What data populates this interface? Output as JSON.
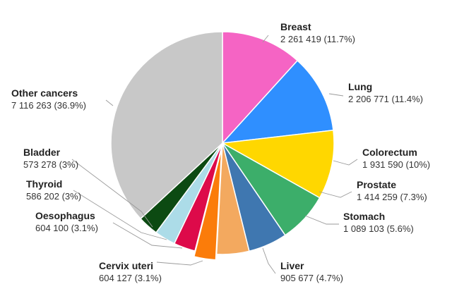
{
  "chart_data": {
    "type": "pie",
    "title": "",
    "start": "top, clockwise",
    "slices": [
      {
        "name": "Breast",
        "value": 2261419,
        "value_label": "2 261 419",
        "pct_label": "(11.7%)",
        "color": "#f564c4"
      },
      {
        "name": "Lung",
        "value": 2206771,
        "value_label": "2 206 771",
        "pct_label": "(11.4%)",
        "color": "#2f8fff"
      },
      {
        "name": "Colorectum",
        "value": 1931590,
        "value_label": "1 931 590",
        "pct_label": "(10%)",
        "color": "#ffd700"
      },
      {
        "name": "Prostate",
        "value": 1414259,
        "value_label": "1 414 259",
        "pct_label": "(7.3%)",
        "color": "#3cae6a"
      },
      {
        "name": "Stomach",
        "value": 1089103,
        "value_label": "1 089 103",
        "pct_label": "(5.6%)",
        "color": "#3f77b0"
      },
      {
        "name": "Liver",
        "value": 905677,
        "value_label": "905 677",
        "pct_label": "(4.7%)",
        "color": "#f3a95f"
      },
      {
        "name": "Cervix uteri",
        "value": 604127,
        "value_label": "604 127",
        "pct_label": "(3.1%)",
        "color": "#fb7c0a",
        "exploded": true
      },
      {
        "name": "Oesophagus",
        "value": 604100,
        "value_label": "604 100",
        "pct_label": "(3.1%)",
        "color": "#dd0a4a"
      },
      {
        "name": "Thyroid",
        "value": 586202,
        "value_label": "586 202",
        "pct_label": "(3%)",
        "color": "#acdce8"
      },
      {
        "name": "Bladder",
        "value": 573278,
        "value_label": "573 278",
        "pct_label": "(3%)",
        "color": "#0c4a12"
      },
      {
        "name": "Other cancers",
        "value": 7116263,
        "value_label": "7 116 263",
        "pct_label": "(36.9%)",
        "color": "#c8c8c8"
      }
    ]
  }
}
